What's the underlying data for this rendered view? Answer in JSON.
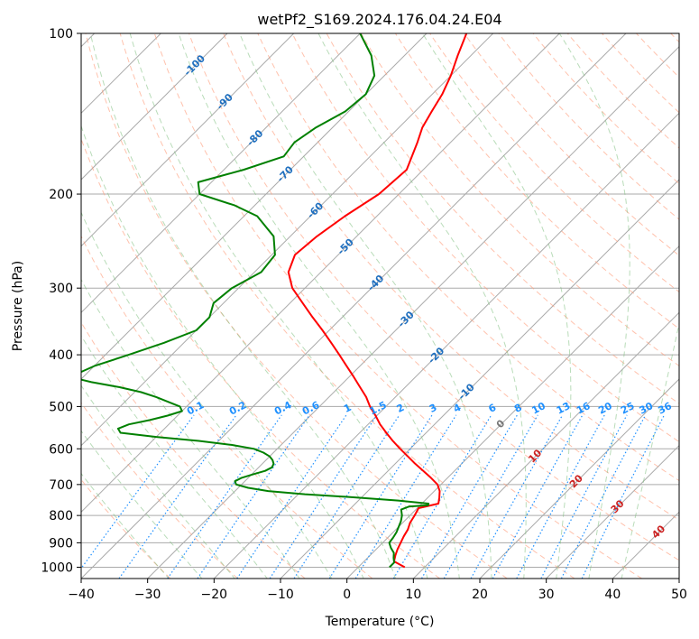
{
  "chart_data": {
    "type": "line",
    "title": "wetPf2_S169.2024.176.04.24.E04",
    "xlabel": "Temperature (°C)",
    "ylabel": "Pressure (hPa)",
    "xlim": [
      -40,
      50
    ],
    "ylim": [
      1050,
      100
    ],
    "y_scale": "log",
    "x_ticks": [
      -40,
      -30,
      -20,
      -10,
      0,
      10,
      20,
      30,
      40,
      50
    ],
    "x_tick_labels": [
      "−40",
      "−30",
      "−20",
      "−10",
      "0",
      "10",
      "20",
      "30",
      "40",
      "50"
    ],
    "y_ticks": [
      100,
      200,
      300,
      400,
      500,
      600,
      700,
      800,
      900,
      1000
    ],
    "y_tick_labels": [
      "100",
      "200",
      "300",
      "400",
      "500",
      "600",
      "700",
      "800",
      "900",
      "1000"
    ],
    "grid": true,
    "series": [
      {
        "role": "temperature",
        "color": "#ff0000",
        "p": [
          1000,
          975,
          950,
          925,
          900,
          875,
          850,
          825,
          800,
          775,
          760,
          740,
          720,
          700,
          680,
          660,
          640,
          620,
          600,
          580,
          560,
          540,
          520,
          500,
          480,
          460,
          440,
          420,
          400,
          380,
          360,
          340,
          320,
          300,
          280,
          260,
          240,
          220,
          200,
          180,
          160,
          150,
          140,
          130,
          120,
          110,
          100
        ],
        "t": [
          7.0,
          4.5,
          3.8,
          3.2,
          2.7,
          2.2,
          1.8,
          1.1,
          0.7,
          0.2,
          2.5,
          1.7,
          0.8,
          -0.5,
          -2.5,
          -4.7,
          -7.0,
          -9.2,
          -11.5,
          -13.8,
          -16.0,
          -18.2,
          -20.2,
          -22.4,
          -24.4,
          -26.8,
          -29.3,
          -32.0,
          -34.8,
          -37.8,
          -41.0,
          -44.5,
          -48.1,
          -51.9,
          -54.9,
          -56.5,
          -56.0,
          -54.8,
          -53.0,
          -52.5,
          -55.0,
          -56.5,
          -57.5,
          -58.5,
          -60.0,
          -62.0,
          -64.0
        ]
      },
      {
        "role": "dewpoint",
        "color": "#008000",
        "p": [
          1000,
          980,
          960,
          940,
          920,
          900,
          880,
          860,
          840,
          820,
          800,
          780,
          770,
          765,
          760,
          750,
          740,
          730,
          720,
          710,
          700,
          690,
          680,
          670,
          660,
          650,
          640,
          630,
          620,
          610,
          600,
          590,
          580,
          570,
          560,
          550,
          540,
          530,
          520,
          510,
          500,
          490,
          480,
          470,
          460,
          450,
          440,
          420,
          400,
          380,
          360,
          340,
          320,
          300,
          280,
          260,
          240,
          220,
          210,
          200,
          190,
          180,
          170,
          160,
          150,
          140,
          130,
          120,
          110,
          100
        ],
        "t": [
          4.7,
          4.7,
          3.9,
          3.2,
          2.0,
          1.0,
          0.8,
          0.5,
          0.0,
          -0.5,
          -1.2,
          -2.2,
          -1.5,
          1.2,
          1.0,
          -4.0,
          -11.0,
          -19.0,
          -25.0,
          -28.5,
          -30.8,
          -31.5,
          -31.0,
          -29.8,
          -28.5,
          -28.0,
          -28.3,
          -29.0,
          -30.0,
          -31.5,
          -33.5,
          -37.5,
          -43.0,
          -50.0,
          -56.0,
          -57.0,
          -56.0,
          -53.5,
          -51.5,
          -50.0,
          -51.0,
          -53.5,
          -56.0,
          -59.0,
          -63.0,
          -68.0,
          -72.0,
          -70.0,
          -66.5,
          -63.0,
          -60.0,
          -60.0,
          -61.5,
          -61.0,
          -59.0,
          -59.5,
          -62.5,
          -68.0,
          -73.0,
          -80.0,
          -82.0,
          -77.0,
          -73.0,
          -73.5,
          -72.5,
          -70.5,
          -70.0,
          -71.5,
          -75.0,
          -80.0
        ]
      }
    ],
    "dry_adiabat_labels": [
      "-100",
      "-90",
      "-80",
      "-70",
      "-60",
      "-50",
      "-40",
      "-30",
      "-20",
      "-10",
      "0",
      "10",
      "20",
      "30",
      "40"
    ],
    "mixing_ratio_labels": [
      "0.1",
      "0.2",
      "0.4",
      "0.6",
      "1",
      "1.5",
      "2",
      "3",
      "4",
      "6",
      "8",
      "10",
      "13",
      "16",
      "20",
      "25",
      "30",
      "36"
    ],
    "colors": {
      "isotherm": "#aaaaaa",
      "dry_adiabat": "#ff9977",
      "moist_adiabat": "#7fbf7f",
      "mixing_ratio": "#1e90ff",
      "isobar": "#aaaaaa",
      "label_blue": "#1f6fbf",
      "label_red": "#cc2222",
      "label_gray": "#777777"
    }
  }
}
